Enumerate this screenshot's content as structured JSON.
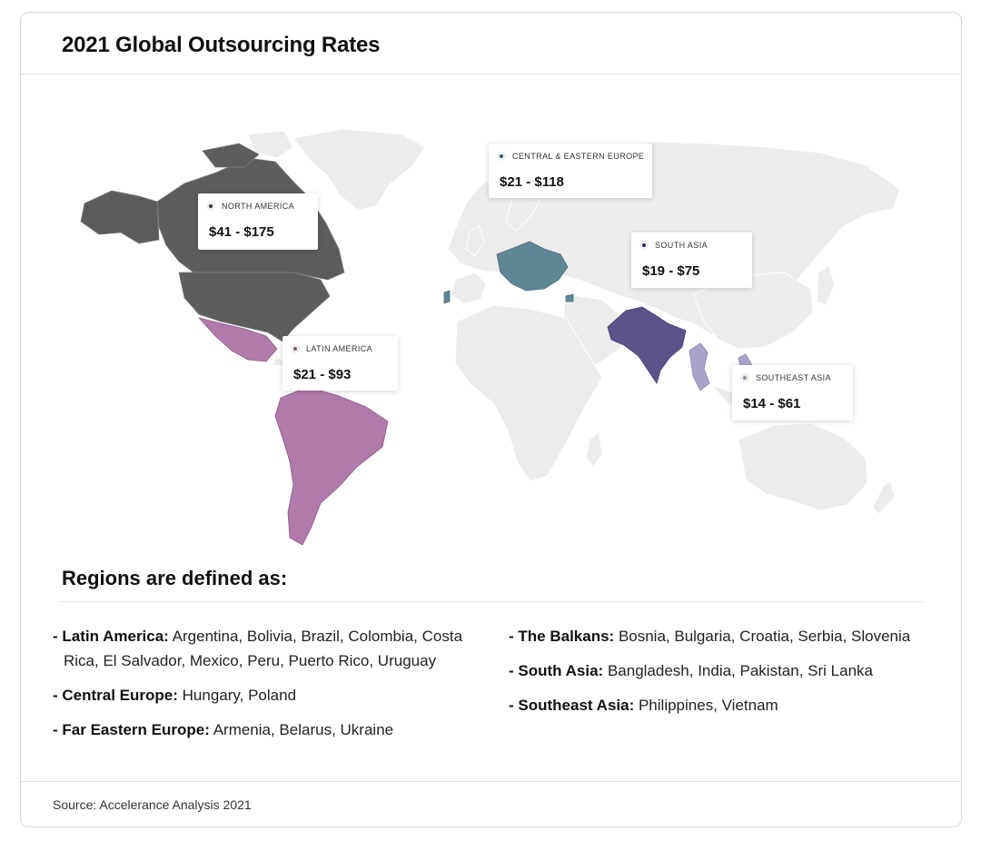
{
  "header": {
    "title": "2021 Global Outsourcing Rates"
  },
  "map": {
    "regions": [
      {
        "key": "north_america",
        "label": "NORTH AMERICA",
        "range": "$41 - $175",
        "color": "#5c5c5c"
      },
      {
        "key": "latin_america",
        "label": "LATIN AMERICA",
        "range": "$21 - $93",
        "color": "#b07aab"
      },
      {
        "key": "ce_europe",
        "label": "CENTRAL & EASTERN EUROPE",
        "range": "$21 - $118",
        "color": "#5e8796"
      },
      {
        "key": "south_asia",
        "label": "SOUTH ASIA",
        "range": "$19 - $75",
        "color": "#5a548a"
      },
      {
        "key": "southeast_asia",
        "label": "SOUTHEAST ASIA",
        "range": "$14 - $61",
        "color": "#a9a3cc"
      }
    ],
    "base_color": "#ececec"
  },
  "definitions": {
    "title": "Regions are defined as:",
    "left": [
      {
        "name": "Latin America:",
        "countries": "Argentina, Bolivia, Brazil, Colombia, Costa Rica, El Salvador, Mexico, Peru, Puerto Rico, Uruguay"
      },
      {
        "name": "Central Europe:",
        "countries": "Hungary, Poland"
      },
      {
        "name": "Far Eastern Europe:",
        "countries": "Armenia, Belarus, Ukraine"
      }
    ],
    "right": [
      {
        "name": "The Balkans:",
        "countries": "Bosnia, Bulgaria, Croatia, Serbia, Slovenia"
      },
      {
        "name": "South Asia:",
        "countries": "Bangladesh, India, Pakistan, Sri Lanka"
      },
      {
        "name": "Southeast Asia:",
        "countries": "Philippines, Vietnam"
      }
    ],
    "prefix": "- "
  },
  "footer": {
    "source": "Source: Accelerance Analysis 2021"
  }
}
